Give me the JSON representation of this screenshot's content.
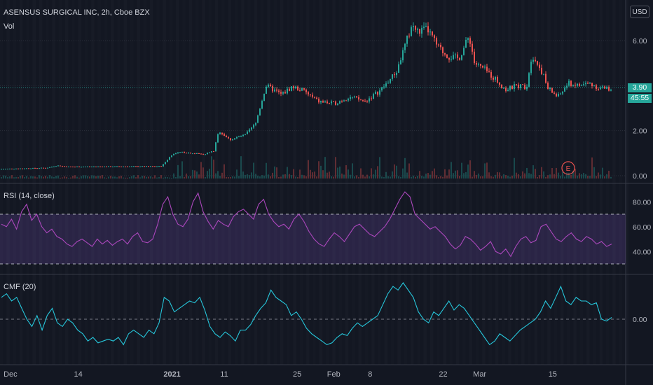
{
  "header": {
    "symbol": "ASENSUS SURGICAL INC, 2h, Cboe BZX",
    "volume_label": "Vol",
    "currency": "USD"
  },
  "last_price": {
    "value": "3.90",
    "countdown": "45:55",
    "color": "#26a69a"
  },
  "earnings_marker": "E",
  "colors": {
    "up": "#26a69a",
    "down": "#ef5350",
    "rsi_line": "#ab47bc",
    "cmf_line": "#26c6da",
    "background": "#131722"
  },
  "chart_data": [
    {
      "type": "candlestick",
      "title": "ASENSUS SURGICAL INC, 2h, Cboe BZX",
      "ylabel": "USD",
      "y_ticks": [
        0.0,
        2.0,
        4.0,
        6.0
      ],
      "y_tick_labels": [
        "0.00",
        "2.00",
        "",
        "6.00"
      ],
      "ylim": [
        -0.2,
        7.4
      ],
      "x_tick_labels": [
        "Dec",
        "14",
        "2021",
        "11",
        "25",
        "Feb",
        "8",
        "22",
        "Mar",
        "15"
      ],
      "x_tick_days": [
        1,
        14,
        32,
        42,
        56,
        63,
        70,
        84,
        91,
        105
      ],
      "x_range_days": [
        -1,
        119
      ],
      "price_path": [
        [
          -1,
          0.3
        ],
        [
          8,
          0.35
        ],
        [
          10,
          0.45
        ],
        [
          12,
          0.4
        ],
        [
          30,
          0.42
        ],
        [
          32,
          0.95
        ],
        [
          34,
          1.05
        ],
        [
          38,
          0.95
        ],
        [
          40,
          1.1
        ],
        [
          41,
          2.0
        ],
        [
          43,
          1.6
        ],
        [
          46,
          1.8
        ],
        [
          48,
          2.3
        ],
        [
          50,
          4.0
        ],
        [
          53,
          3.6
        ],
        [
          55,
          3.95
        ],
        [
          57,
          3.8
        ],
        [
          60,
          3.3
        ],
        [
          63,
          3.2
        ],
        [
          66,
          3.5
        ],
        [
          69,
          3.3
        ],
        [
          72,
          3.8
        ],
        [
          75,
          4.6
        ],
        [
          77,
          6.0
        ],
        [
          78,
          6.7
        ],
        [
          79,
          6.4
        ],
        [
          81,
          6.5
        ],
        [
          83,
          5.7
        ],
        [
          85,
          5.3
        ],
        [
          87,
          5.2
        ],
        [
          89,
          6.2
        ],
        [
          90,
          5.0
        ],
        [
          92,
          4.7
        ],
        [
          94,
          4.3
        ],
        [
          96,
          3.8
        ],
        [
          98,
          4.0
        ],
        [
          100,
          3.95
        ],
        [
          101,
          5.4
        ],
        [
          103,
          4.6
        ],
        [
          104,
          3.9
        ],
        [
          106,
          3.5
        ],
        [
          108,
          4.1
        ],
        [
          110,
          4.0
        ],
        [
          112,
          4.1
        ],
        [
          114,
          3.9
        ],
        [
          116,
          3.85
        ],
        [
          118,
          3.9
        ]
      ],
      "series": [
        {
          "name": "Vol",
          "type": "volume"
        }
      ]
    },
    {
      "type": "line",
      "title": "RSI (14, close)",
      "ylabel": "",
      "ylim": [
        25,
        95
      ],
      "y_ticks": [
        40,
        60,
        80
      ],
      "y_tick_labels": [
        "40.00",
        "60.00",
        "80.00"
      ],
      "bands": [
        30,
        70
      ],
      "series": [
        {
          "name": "RSI",
          "values": [
            62,
            60,
            66,
            58,
            72,
            78,
            65,
            70,
            60,
            55,
            58,
            52,
            50,
            46,
            44,
            48,
            50,
            47,
            44,
            50,
            46,
            49,
            45,
            48,
            50,
            46,
            52,
            55,
            48,
            47,
            50,
            62,
            78,
            84,
            70,
            62,
            60,
            66,
            80,
            87,
            72,
            64,
            58,
            65,
            62,
            60,
            68,
            72,
            74,
            70,
            66,
            78,
            82,
            70,
            64,
            60,
            62,
            58,
            66,
            70,
            64,
            56,
            50,
            46,
            44,
            50,
            55,
            52,
            48,
            54,
            60,
            62,
            58,
            54,
            52,
            56,
            60,
            66,
            74,
            82,
            88,
            84,
            70,
            66,
            62,
            58,
            60,
            56,
            52,
            46,
            42,
            45,
            52,
            50,
            46,
            41,
            44,
            48,
            40,
            38,
            42,
            36,
            44,
            50,
            52,
            47,
            49,
            60,
            62,
            56,
            50,
            48,
            52,
            55,
            50,
            48,
            52,
            50,
            46,
            48,
            44,
            46
          ]
        }
      ]
    },
    {
      "type": "line",
      "title": "CMF (20)",
      "ylabel": "",
      "ylim": [
        -0.18,
        0.23
      ],
      "y_ticks": [
        0
      ],
      "y_tick_labels": [
        "0.00"
      ],
      "series": [
        {
          "name": "CMF",
          "values": [
            0.12,
            0.14,
            0.1,
            0.12,
            0.06,
            0.0,
            -0.04,
            0.02,
            -0.06,
            0.02,
            0.06,
            -0.02,
            -0.04,
            0.0,
            -0.02,
            -0.06,
            -0.08,
            -0.12,
            -0.1,
            -0.13,
            -0.12,
            -0.11,
            -0.12,
            -0.1,
            -0.14,
            -0.08,
            -0.06,
            -0.08,
            -0.1,
            -0.06,
            -0.08,
            -0.02,
            0.12,
            0.1,
            0.04,
            0.06,
            0.08,
            0.1,
            0.09,
            0.12,
            0.05,
            -0.04,
            -0.08,
            -0.1,
            -0.07,
            -0.09,
            -0.12,
            -0.06,
            -0.06,
            -0.03,
            0.02,
            0.06,
            0.09,
            0.16,
            0.12,
            0.1,
            0.08,
            0.02,
            0.04,
            0.0,
            -0.05,
            -0.08,
            -0.1,
            -0.12,
            -0.14,
            -0.13,
            -0.1,
            -0.08,
            -0.09,
            -0.05,
            -0.02,
            -0.04,
            -0.02,
            0.0,
            0.02,
            0.08,
            0.14,
            0.18,
            0.16,
            0.2,
            0.16,
            0.12,
            0.04,
            0.0,
            -0.02,
            0.04,
            0.02,
            0.06,
            0.1,
            0.05,
            0.08,
            0.06,
            0.02,
            -0.02,
            -0.06,
            -0.1,
            -0.14,
            -0.12,
            -0.08,
            -0.1,
            -0.12,
            -0.09,
            -0.06,
            -0.04,
            -0.02,
            0.0,
            0.04,
            0.1,
            0.06,
            0.12,
            0.18,
            0.1,
            0.08,
            0.12,
            0.1,
            0.1,
            0.08,
            0.09,
            0.0,
            -0.01,
            0.01
          ]
        }
      ]
    }
  ]
}
